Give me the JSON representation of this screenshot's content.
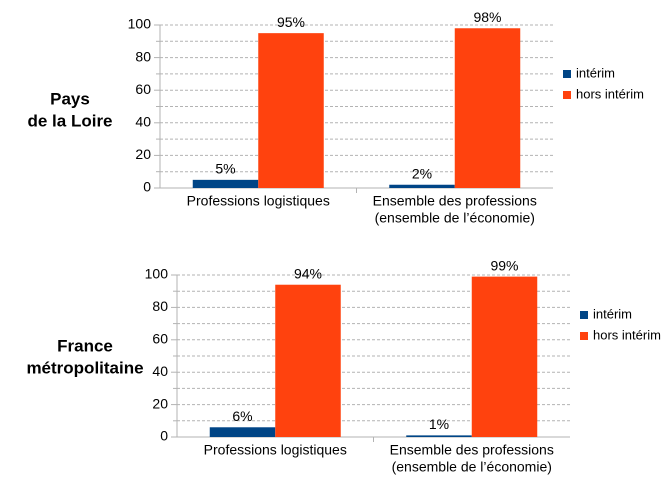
{
  "chart_data": [
    {
      "type": "bar",
      "title_lines": [
        "Pays",
        "de la Loire"
      ],
      "categories": [
        [
          "Professions logistiques"
        ],
        [
          "Ensemble des professions",
          "(ensemble de l’économie)"
        ]
      ],
      "series": [
        {
          "name": "intérim",
          "color": "#004586",
          "values": [
            5,
            2
          ],
          "value_labels": [
            "5%",
            "2%"
          ]
        },
        {
          "name": "hors intérim",
          "color": "#ff420e",
          "values": [
            95,
            98
          ],
          "value_labels": [
            "95%",
            "98%"
          ]
        }
      ],
      "ylim": [
        0,
        100
      ],
      "yticks": [
        0,
        20,
        40,
        60,
        80,
        100
      ],
      "minor_yticks": [
        10,
        30,
        50,
        70,
        90
      ],
      "grid": true,
      "legend": "right"
    },
    {
      "type": "bar",
      "title_lines": [
        "France",
        "métropolitaine"
      ],
      "categories": [
        [
          "Professions logistiques"
        ],
        [
          "Ensemble des professions",
          "(ensemble de l’économie)"
        ]
      ],
      "series": [
        {
          "name": "intérim",
          "color": "#004586",
          "values": [
            6,
            1
          ],
          "value_labels": [
            "6%",
            "1%"
          ]
        },
        {
          "name": "hors intérim",
          "color": "#ff420e",
          "values": [
            94,
            99
          ],
          "value_labels": [
            "94%",
            "99%"
          ]
        }
      ],
      "ylim": [
        0,
        100
      ],
      "yticks": [
        0,
        20,
        40,
        60,
        80,
        100
      ],
      "minor_yticks": [
        10,
        30,
        50,
        70,
        90
      ],
      "grid": true,
      "legend": "right"
    }
  ]
}
